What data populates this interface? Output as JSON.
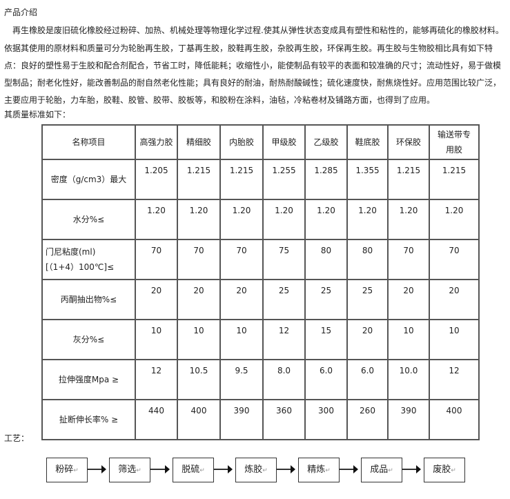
{
  "intro_title": "产品介绍",
  "paragraph_lines": [
    "　再生橡胶是废旧硫化橡胶经过粉碎、加热、机械处理等物理化学过程.使其从弹性状态变成具有塑性和粘性的，能够再硫化的橡胶材料。",
    "依据其使用的原材料和质量可分为轮胎再生胶，丁基再生胶，胶鞋再生胶，杂胶再生胶，环保再生胶。再生胶与生物胶相比具有如下特",
    "点：良好的塑性易于生胶和配合剂配合，节省工时，降低能耗；收缩性小，能使制品有较平的表面和较准确的尺寸；流动性好，易于做模",
    "型制品；耐老化性好，能改善制品的耐自然老化性能；具有良好的耐油，耐热耐酸碱性；硫化速度快，耐焦烧性好。应用范围比较广泛，",
    "主要应用于轮胎，力车胎，胶鞋、胶管、胶带、胶板等，和胶粉在涂料，油毡，冷粘卷材及铺路方面，也得到了应用。"
  ],
  "quality_heading": "其质量标准如下：",
  "table": {
    "header": [
      "名称项目",
      "高强力胶",
      "精细胶",
      "内胎胶",
      "甲级胶",
      "乙级胶",
      "鞋底胶",
      "环保胶",
      "输送带专用胶"
    ],
    "rows": [
      {
        "label": "密度（g/cm3）最大",
        "values": [
          "1.205",
          "1.215",
          "1.215",
          "1.255",
          "1.285",
          "1.355",
          "1.215",
          "1.215"
        ]
      },
      {
        "label": "水分%≤",
        "values": [
          "1.20",
          "1.20",
          "1.20",
          "1.20",
          "1.20",
          "1.20",
          "1.20",
          "1.20"
        ]
      },
      {
        "label": "门尼粘度(ml)[（1+4）100℃]≤",
        "values": [
          "70",
          "70",
          "70",
          "75",
          "80",
          "80",
          "70",
          "70"
        ]
      },
      {
        "label": "丙酮抽出物%≤",
        "values": [
          "20",
          "20",
          "20",
          "25",
          "25",
          "25",
          "20",
          "20"
        ]
      },
      {
        "label": "灰分%≤",
        "values": [
          "10",
          "10",
          "10",
          "12",
          "15",
          "20",
          "10",
          "10"
        ]
      },
      {
        "label": "拉伸强度Mpa ≥",
        "values": [
          "12",
          "10.5",
          "9.5",
          "8.0",
          "6.0",
          "6.0",
          "10.0",
          "12"
        ]
      },
      {
        "label": "扯断伸长率% ≥",
        "values": [
          "440",
          "400",
          "390",
          "360",
          "300",
          "260",
          "390",
          "400"
        ]
      }
    ]
  },
  "process_title": "工艺：",
  "process_steps": [
    "粉碎",
    "筛选",
    "脱硫",
    "炼胶",
    "精炼",
    "成品",
    "废胶"
  ],
  "return_mark": "↵"
}
